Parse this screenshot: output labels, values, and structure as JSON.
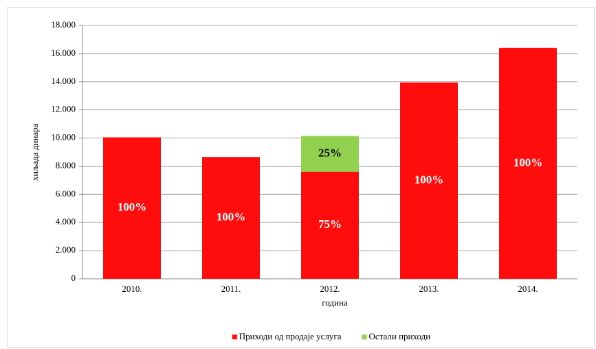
{
  "chart_data": {
    "type": "stacked_bar",
    "x_label": "година",
    "y_label": "хиљада динара",
    "categories": [
      "2010.",
      "2011.",
      "2012.",
      "2013.",
      "2014."
    ],
    "series": [
      {
        "name": "Приходи од продаје услуга",
        "color": "#ff0d0d",
        "values": [
          10050,
          8650,
          7600,
          13950,
          16400
        ],
        "value_labels": [
          "100%",
          "100%",
          "75%",
          "100%",
          "100%"
        ]
      },
      {
        "name": "Остали приходи",
        "color": "#92d050",
        "values": [
          null,
          null,
          2550,
          null,
          null
        ],
        "value_labels": [
          null,
          null,
          "25%",
          null,
          null
        ]
      }
    ],
    "ylim": [
      0,
      18000
    ],
    "yticks": [
      0,
      {
        "value": 2000,
        "label": "2.000"
      },
      {
        "value": 4000,
        "label": "4.000"
      },
      {
        "value": 6000,
        "label": "6.000"
      },
      {
        "value": 8000,
        "label": "8.000"
      },
      {
        "value": 10000,
        "label": "10.000"
      },
      {
        "value": 12000,
        "label": "12.000"
      },
      {
        "value": 14000,
        "label": "14.000"
      },
      {
        "value": 16000,
        "label": "16.000"
      },
      {
        "value": 18000,
        "label": "18.000"
      }
    ],
    "grid": true,
    "legend": "bottom"
  }
}
